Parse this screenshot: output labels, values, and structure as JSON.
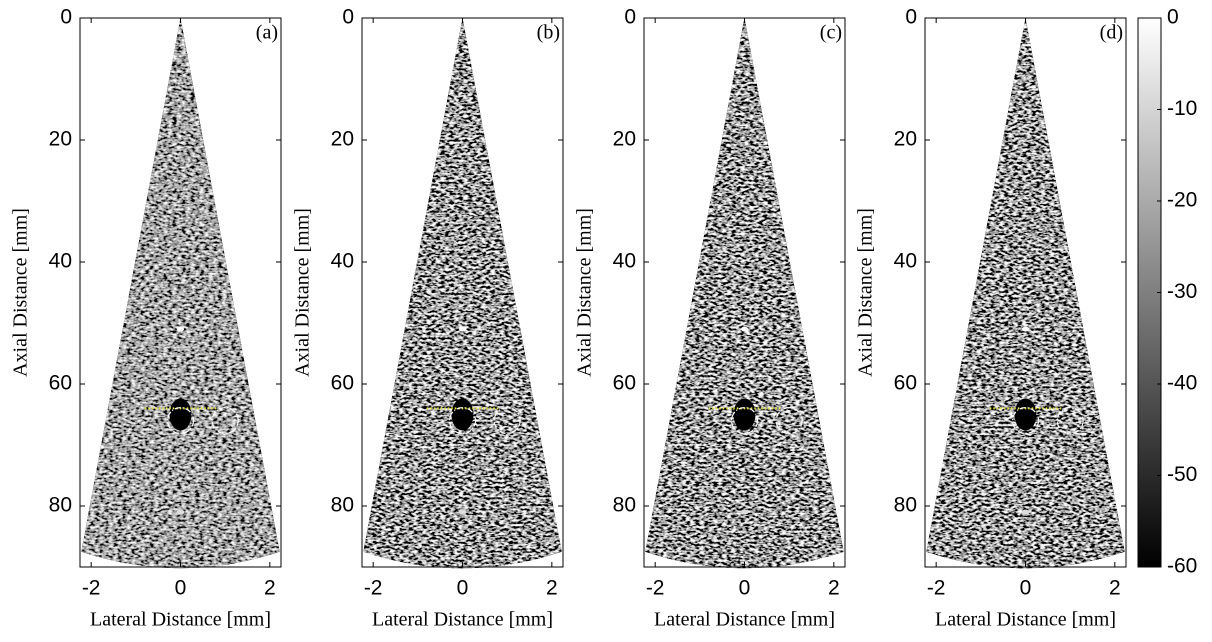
{
  "chart_data": [
    {
      "type": "image",
      "panel_label": "(a)",
      "xlabel": "Lateral Distance [mm]",
      "ylabel": "Axial Distance [mm]",
      "xlim": [
        -2.25,
        2.25
      ],
      "ylim": [
        0,
        90
      ],
      "y_reversed": true,
      "xticks": [
        -2,
        0,
        2
      ],
      "yticks": [
        0,
        20,
        40,
        60,
        80
      ]
    },
    {
      "type": "image",
      "panel_label": "(b)",
      "xlabel": "Lateral Distance [mm]",
      "ylabel": "Axial Distance [mm]",
      "xlim": [
        -2.25,
        2.25
      ],
      "ylim": [
        0,
        90
      ],
      "y_reversed": true,
      "xticks": [
        -2,
        0,
        2
      ],
      "yticks": [
        0,
        20,
        40,
        60,
        80
      ]
    },
    {
      "type": "image",
      "panel_label": "(c)",
      "xlabel": "Lateral Distance [mm]",
      "ylabel": "Axial Distance [mm]",
      "xlim": [
        -2.25,
        2.25
      ],
      "ylim": [
        0,
        90
      ],
      "y_reversed": true,
      "xticks": [
        -2,
        0,
        2
      ],
      "yticks": [
        0,
        20,
        40,
        60,
        80
      ]
    },
    {
      "type": "image",
      "panel_label": "(d)",
      "xlabel": "Lateral Distance [mm]",
      "ylabel": "Axial Distance [mm]",
      "xlim": [
        -2.25,
        2.25
      ],
      "ylim": [
        0,
        90
      ],
      "y_reversed": true,
      "xticks": [
        -2,
        0,
        2
      ],
      "yticks": [
        0,
        20,
        40,
        60,
        80
      ]
    },
    {
      "type": "colorbar",
      "ylim": [
        -60,
        0
      ],
      "yticks": [
        0,
        -10,
        -20,
        -30,
        -40,
        -50,
        -60
      ],
      "colormap": "gray"
    }
  ]
}
